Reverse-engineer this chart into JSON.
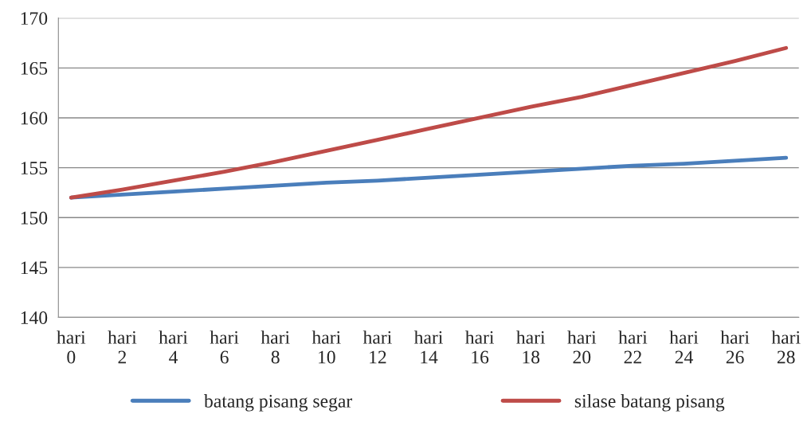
{
  "chart_data": {
    "type": "line",
    "categories": [
      "hari\n0",
      "hari\n2",
      "hari\n4",
      "hari\n6",
      "hari\n8",
      "hari\n10",
      "hari\n12",
      "hari\n14",
      "hari\n16",
      "hari\n18",
      "hari\n20",
      "hari\n22",
      "hari\n24",
      "hari\n26",
      "hari\n28"
    ],
    "series": [
      {
        "name": "batang pisang segar",
        "color": "#4a7ebb",
        "values": [
          152,
          152.3,
          152.6,
          152.9,
          153.2,
          153.5,
          153.7,
          154.0,
          154.3,
          154.6,
          154.9,
          155.2,
          155.4,
          155.7,
          156
        ]
      },
      {
        "name": "silase batang pisang",
        "color": "#be4b48",
        "values": [
          152,
          152.8,
          153.7,
          154.6,
          155.6,
          156.7,
          157.8,
          158.9,
          160.0,
          161.1,
          162.1,
          163.3,
          164.5,
          165.7,
          167
        ]
      }
    ],
    "ylim": [
      140,
      170
    ],
    "yticks": [
      140,
      145,
      150,
      155,
      160,
      165,
      170
    ],
    "grid": "y",
    "legend": "bottom",
    "marker": "none",
    "line_style": "solid"
  }
}
